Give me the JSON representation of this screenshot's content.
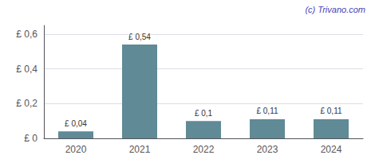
{
  "chart_data": {
    "type": "bar",
    "categories": [
      "2020",
      "2021",
      "2022",
      "2023",
      "2024"
    ],
    "values": [
      0.04,
      0.54,
      0.1,
      0.11,
      0.11
    ],
    "value_labels": [
      "£ 0,04",
      "£ 0,54",
      "£ 0,1",
      "£ 0,11",
      "£ 0,11"
    ],
    "data_labels": true,
    "color": "#5f8a96",
    "ylim": [
      0,
      0.65
    ],
    "yticks": [
      {
        "value": 0.0,
        "label": "£ 0"
      },
      {
        "value": 0.2,
        "label": "£ 0,2"
      },
      {
        "value": 0.4,
        "label": "£ 0,4"
      },
      {
        "value": 0.6,
        "label": "£ 0,6"
      }
    ],
    "grid": true,
    "annotations": [
      "(c) Trivano.com"
    ]
  }
}
